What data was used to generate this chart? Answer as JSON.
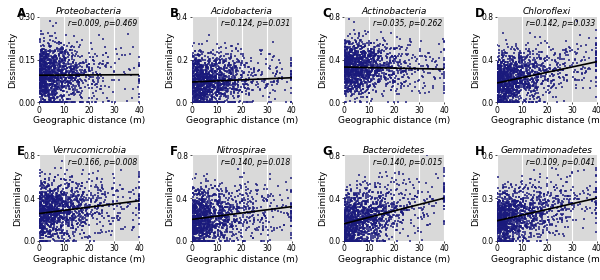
{
  "panels": [
    {
      "label": "A",
      "title": "Proteobacteria",
      "r": "0.009",
      "p": "0.469",
      "ylim": [
        0,
        0.3
      ],
      "yticks": [
        0,
        0.15,
        0.3
      ],
      "slope": 5e-05,
      "intercept": 0.095,
      "noise": 0.055,
      "n_points": 1400,
      "xscale": 8
    },
    {
      "label": "B",
      "title": "Acidobacteria",
      "r": "0.124",
      "p": "0.031",
      "ylim": [
        0,
        0.4
      ],
      "yticks": [
        0,
        0.2,
        0.4
      ],
      "slope": 0.0005,
      "intercept": 0.095,
      "noise": 0.065,
      "n_points": 1400,
      "xscale": 10
    },
    {
      "label": "C",
      "title": "Actinobacteria",
      "r": "0.035",
      "p": "0.262",
      "ylim": [
        0,
        0.8
      ],
      "yticks": [
        0,
        0.4,
        0.8
      ],
      "slope": -0.0005,
      "intercept": 0.33,
      "noise": 0.13,
      "n_points": 1400,
      "xscale": 10
    },
    {
      "label": "D",
      "title": "Chloroflexi",
      "r": "0.142",
      "p": "0.033",
      "ylim": [
        0,
        0.8
      ],
      "yticks": [
        0,
        0.4,
        0.8
      ],
      "slope": 0.005,
      "intercept": 0.18,
      "noise": 0.13,
      "n_points": 1400,
      "xscale": 10
    },
    {
      "label": "E",
      "title": "Verrucomicrobia",
      "r": "0.166",
      "p": "0.008",
      "ylim": [
        0,
        0.8
      ],
      "yticks": [
        0,
        0.4,
        0.8
      ],
      "slope": 0.003,
      "intercept": 0.255,
      "noise": 0.14,
      "n_points": 1400,
      "xscale": 10
    },
    {
      "label": "F",
      "title": "Nitrospirae",
      "r": "0.140",
      "p": "0.018",
      "ylim": [
        0,
        0.8
      ],
      "yticks": [
        0,
        0.4,
        0.8
      ],
      "slope": 0.003,
      "intercept": 0.2,
      "noise": 0.14,
      "n_points": 1400,
      "xscale": 10
    },
    {
      "label": "G",
      "title": "Bacteroidetes",
      "r": "0.140",
      "p": "0.015",
      "ylim": [
        0,
        0.8
      ],
      "yticks": [
        0,
        0.4,
        0.8
      ],
      "slope": 0.006,
      "intercept": 0.16,
      "noise": 0.14,
      "n_points": 1400,
      "xscale": 10
    },
    {
      "label": "H",
      "title": "Gemmatimonadetes",
      "r": "0.109",
      "p": "0.041",
      "ylim": [
        0,
        0.6
      ],
      "yticks": [
        0,
        0.3,
        0.6
      ],
      "slope": 0.004,
      "intercept": 0.14,
      "noise": 0.1,
      "n_points": 1400,
      "xscale": 10
    }
  ],
  "dot_color": "#1a1a7c",
  "line_color": "#000000",
  "bg_color": "#d9d9d9",
  "xlabel": "Geographic distance (m)",
  "ylabel": "Dissimilarity",
  "xmin": 0,
  "xmax": 40,
  "xticks": [
    0,
    10,
    20,
    30,
    40
  ],
  "dot_size": 2.5,
  "dot_alpha": 0.75,
  "dot_marker": "s",
  "label_fontsize": 6.5,
  "title_fontsize": 6.5,
  "annot_fontsize": 5.5,
  "tick_fontsize": 5.5
}
